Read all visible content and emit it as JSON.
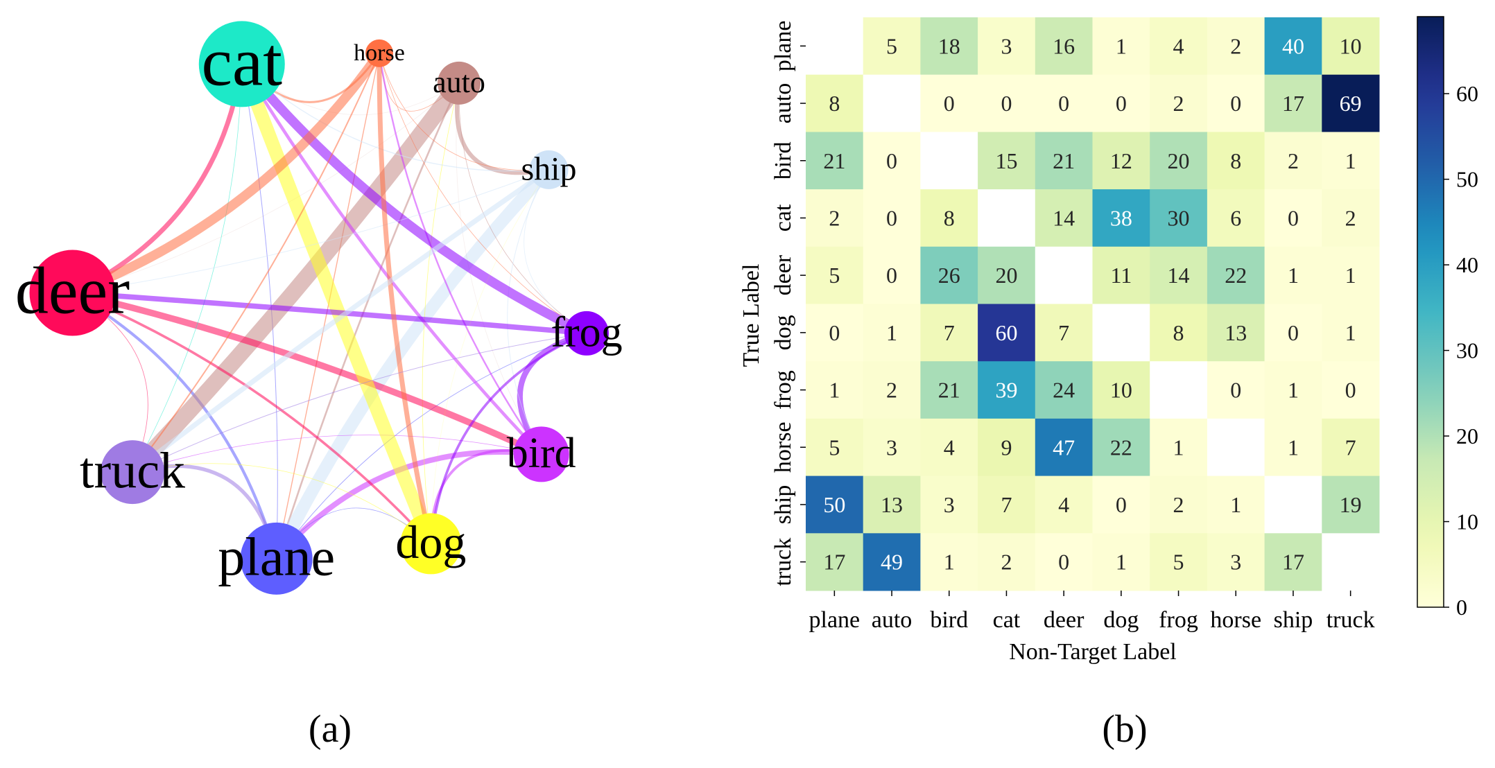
{
  "panels": {
    "left_label": "(a)",
    "right_label": "(b)"
  },
  "chart_data": [
    {
      "type": "network",
      "nodes": [
        {
          "name": "cat",
          "color": "#1de9c8",
          "weight": 150
        },
        {
          "name": "horse",
          "color": "#ff7043",
          "weight": 31
        },
        {
          "name": "auto",
          "color": "#c48b86",
          "weight": 94
        },
        {
          "name": "ship",
          "color": "#cfe3f7",
          "weight": 46
        },
        {
          "name": "frog",
          "color": "#8e00ff",
          "weight": 98
        },
        {
          "name": "bird",
          "color": "#cc33ff",
          "weight": 65
        },
        {
          "name": "dog",
          "color": "#ffff26",
          "weight": 114
        },
        {
          "name": "plane",
          "color": "#5e5eff",
          "weight": 133
        },
        {
          "name": "truck",
          "color": "#9f7be3",
          "weight": 107
        },
        {
          "name": "deer",
          "color": "#ff0a5a",
          "weight": 159
        }
      ],
      "edge_source": "confusion matrix (b), symmetric sum"
    },
    {
      "type": "heatmap",
      "ylabel": "True Label",
      "xlabel": "Non-Target Label",
      "rows": [
        "plane",
        "auto",
        "bird",
        "cat",
        "deer",
        "dog",
        "frog",
        "horse",
        "ship",
        "truck"
      ],
      "cols": [
        "plane",
        "auto",
        "bird",
        "cat",
        "deer",
        "dog",
        "frog",
        "horse",
        "ship",
        "truck"
      ],
      "values": [
        [
          null,
          5,
          18,
          3,
          16,
          1,
          4,
          2,
          40,
          10
        ],
        [
          8,
          null,
          0,
          0,
          0,
          0,
          2,
          0,
          17,
          69
        ],
        [
          21,
          0,
          null,
          15,
          21,
          12,
          20,
          8,
          2,
          1
        ],
        [
          2,
          0,
          8,
          null,
          14,
          38,
          30,
          6,
          0,
          2
        ],
        [
          5,
          0,
          26,
          20,
          null,
          11,
          14,
          22,
          1,
          1
        ],
        [
          0,
          1,
          7,
          60,
          7,
          null,
          8,
          13,
          0,
          1
        ],
        [
          1,
          2,
          21,
          39,
          24,
          10,
          null,
          0,
          1,
          0
        ],
        [
          5,
          3,
          4,
          9,
          47,
          22,
          1,
          null,
          1,
          7
        ],
        [
          50,
          13,
          3,
          7,
          4,
          0,
          2,
          1,
          null,
          19
        ],
        [
          17,
          49,
          1,
          2,
          0,
          1,
          5,
          3,
          17,
          null
        ]
      ],
      "colormap": "YlGnBu",
      "vmin": 0,
      "vmax": 69,
      "colorbar_ticks": [
        0,
        10,
        20,
        30,
        40,
        50,
        60
      ]
    }
  ]
}
